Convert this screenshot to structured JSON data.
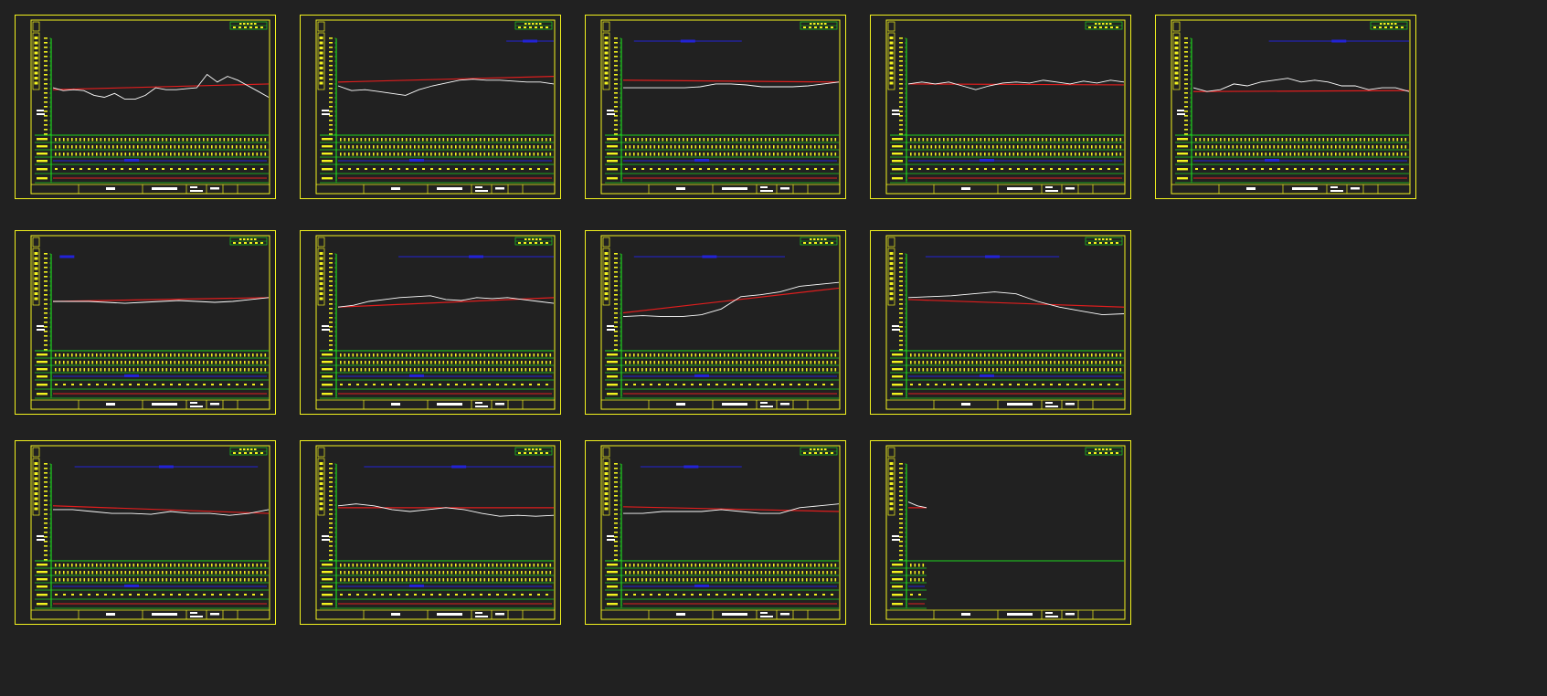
{
  "app": {
    "background": "#212121"
  },
  "colors": {
    "frame": "#f2f21e",
    "grid": "#1ed21e",
    "ground": "#ffffff",
    "design": "#e01e1e",
    "blue": "#2222d8",
    "table_text": "#f2f21e"
  },
  "sheets": [
    {
      "id": "sheet-01",
      "ground": [
        0.52,
        0.55,
        0.54,
        0.55,
        0.6,
        0.62,
        0.58,
        0.64,
        0.64,
        0.6,
        0.52,
        0.54,
        0.54,
        0.53,
        0.52,
        0.38,
        0.46,
        0.4,
        0.44,
        0.5,
        0.56,
        0.62
      ],
      "design": [
        0.54,
        0.48
      ],
      "blue": null
    },
    {
      "id": "sheet-02",
      "ground": [
        0.5,
        0.55,
        0.54,
        0.56,
        0.58,
        0.6,
        0.54,
        0.5,
        0.47,
        0.44,
        0.43,
        0.44,
        0.44,
        0.45,
        0.46,
        0.46,
        0.48
      ],
      "design": [
        0.46,
        0.4
      ],
      "blue": [
        0.78,
        1.0
      ]
    },
    {
      "id": "sheet-03",
      "ground": [
        0.52,
        0.52,
        0.52,
        0.52,
        0.52,
        0.51,
        0.48,
        0.48,
        0.49,
        0.51,
        0.51,
        0.51,
        0.5,
        0.48,
        0.46
      ],
      "design": [
        0.44,
        0.46
      ],
      "blue": [
        0.05,
        0.55
      ]
    },
    {
      "id": "sheet-04",
      "ground": [
        0.48,
        0.46,
        0.48,
        0.46,
        0.5,
        0.54,
        0.5,
        0.47,
        0.46,
        0.47,
        0.44,
        0.46,
        0.48,
        0.45,
        0.47,
        0.44,
        0.46
      ],
      "design": [
        0.48,
        0.49
      ],
      "blue": null
    },
    {
      "id": "sheet-05",
      "ground": [
        0.52,
        0.56,
        0.54,
        0.48,
        0.5,
        0.46,
        0.44,
        0.42,
        0.46,
        0.44,
        0.46,
        0.5,
        0.5,
        0.54,
        0.52,
        0.52,
        0.56
      ],
      "design": [
        0.56,
        0.55
      ],
      "blue": [
        0.35,
        1.0
      ]
    },
    {
      "id": "sheet-06",
      "ground": [
        0.5,
        0.5,
        0.5,
        0.51,
        0.52,
        0.51,
        0.5,
        0.49,
        0.5,
        0.51,
        0.5,
        0.48,
        0.46
      ],
      "design": [
        0.5,
        0.46
      ],
      "blue": [
        0.05,
        0.08
      ]
    },
    {
      "id": "sheet-07",
      "ground": [
        0.56,
        0.54,
        0.5,
        0.48,
        0.46,
        0.45,
        0.44,
        0.48,
        0.49,
        0.46,
        0.47,
        0.46,
        0.48,
        0.5,
        0.52
      ],
      "design": [
        0.56,
        0.46
      ],
      "blue": [
        0.28,
        1.0
      ]
    },
    {
      "id": "sheet-08",
      "ground": [
        0.66,
        0.65,
        0.66,
        0.66,
        0.64,
        0.58,
        0.45,
        0.43,
        0.4,
        0.34,
        0.32,
        0.3
      ],
      "design": [
        0.62,
        0.36
      ],
      "blue": [
        0.05,
        0.75
      ]
    },
    {
      "id": "sheet-09",
      "ground": [
        0.46,
        0.45,
        0.44,
        0.42,
        0.4,
        0.42,
        0.5,
        0.56,
        0.6,
        0.64,
        0.63
      ],
      "design": [
        0.48,
        0.56
      ],
      "blue": [
        0.08,
        0.7
      ]
    },
    {
      "id": "sheet-10",
      "ground": [
        0.48,
        0.48,
        0.5,
        0.52,
        0.52,
        0.53,
        0.5,
        0.52,
        0.52,
        0.54,
        0.52,
        0.48
      ],
      "design": [
        0.44,
        0.52
      ],
      "blue": [
        0.1,
        0.95
      ]
    },
    {
      "id": "sheet-11",
      "ground": [
        0.44,
        0.42,
        0.44,
        0.48,
        0.5,
        0.48,
        0.46,
        0.48,
        0.52,
        0.55,
        0.54,
        0.55,
        0.54
      ],
      "design": [
        0.46,
        0.46
      ],
      "blue": [
        0.12,
        1.0
      ]
    },
    {
      "id": "sheet-12",
      "ground": [
        0.52,
        0.52,
        0.5,
        0.5,
        0.5,
        0.48,
        0.5,
        0.52,
        0.52,
        0.46,
        0.44,
        0.42
      ],
      "design": [
        0.45,
        0.5
      ],
      "blue": [
        0.08,
        0.55
      ]
    },
    {
      "id": "sheet-13",
      "ground": [
        0.4,
        0.44,
        0.46
      ],
      "design": [
        0.46,
        0.46
      ],
      "partial": true,
      "blue": null
    }
  ]
}
